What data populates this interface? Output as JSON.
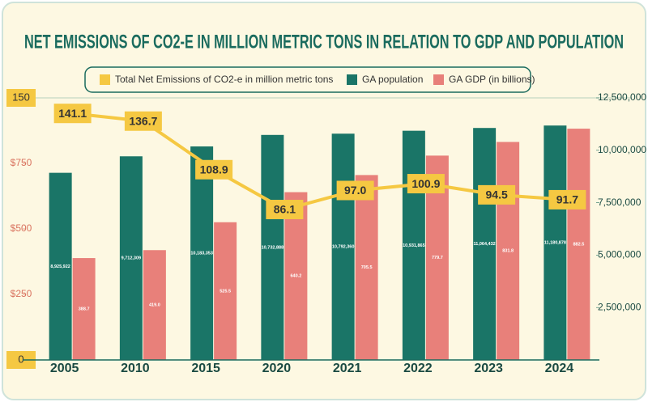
{
  "chart_data": {
    "type": "bar",
    "title": "NET EMISSIONS OF CO2-E IN MILLION METRIC TONS IN RELATION TO GDP AND POPULATION",
    "categories": [
      "2005",
      "2010",
      "2015",
      "2020",
      "2021",
      "2022",
      "2023",
      "2024"
    ],
    "series": [
      {
        "name": "Total Net Emissions of CO2-e in million metric tons",
        "type": "line",
        "color": "#f5c842",
        "values": [
          141.1,
          136.7,
          108.9,
          86.1,
          97.0,
          100.9,
          94.5,
          91.7
        ],
        "value_labels": [
          "141.1",
          "136.7",
          "108.9",
          "86.1",
          "97.0",
          "100.9",
          "94.5",
          "91.7"
        ]
      },
      {
        "name": "GA population",
        "type": "bar",
        "color": "#1a7567",
        "axis": "y2",
        "values": [
          8925922,
          9712309,
          10183353,
          10732888,
          10792360,
          10931865,
          11064432,
          11180878
        ],
        "value_labels": [
          "8,925,922",
          "9,712,309",
          "10,183,353",
          "10,732,888",
          "10,792,360",
          "10,931,865",
          "11,064,432",
          "11,180,878"
        ]
      },
      {
        "name": "GA GDP (in billions)",
        "type": "bar",
        "color": "#e8807a",
        "axis": "y3",
        "values": [
          388.7,
          419.0,
          525.5,
          640.2,
          705.5,
          779.7,
          831.8,
          882.5
        ],
        "value_labels": [
          "388.7",
          "419.0",
          "525.5",
          "640.2",
          "705.5",
          "779.7",
          "831.8",
          "882.5"
        ]
      }
    ],
    "ylim": [
      0,
      150
    ],
    "yticks": [
      0,
      150
    ],
    "y2lim": [
      0,
      12500000
    ],
    "y2ticks": [
      {
        "value": 2500000,
        "label": "2,500,000"
      },
      {
        "value": 5000000,
        "label": "5,000,000"
      },
      {
        "value": 7500000,
        "label": "7,500,000"
      },
      {
        "value": 10000000,
        "label": "10,000,000"
      },
      {
        "value": 12500000,
        "label": "12,500,000"
      }
    ],
    "y3lim": [
      0,
      1000
    ],
    "y3ticks": [
      {
        "value": 250,
        "label": "$250"
      },
      {
        "value": 500,
        "label": "$500"
      },
      {
        "value": 750,
        "label": "$750"
      }
    ]
  }
}
